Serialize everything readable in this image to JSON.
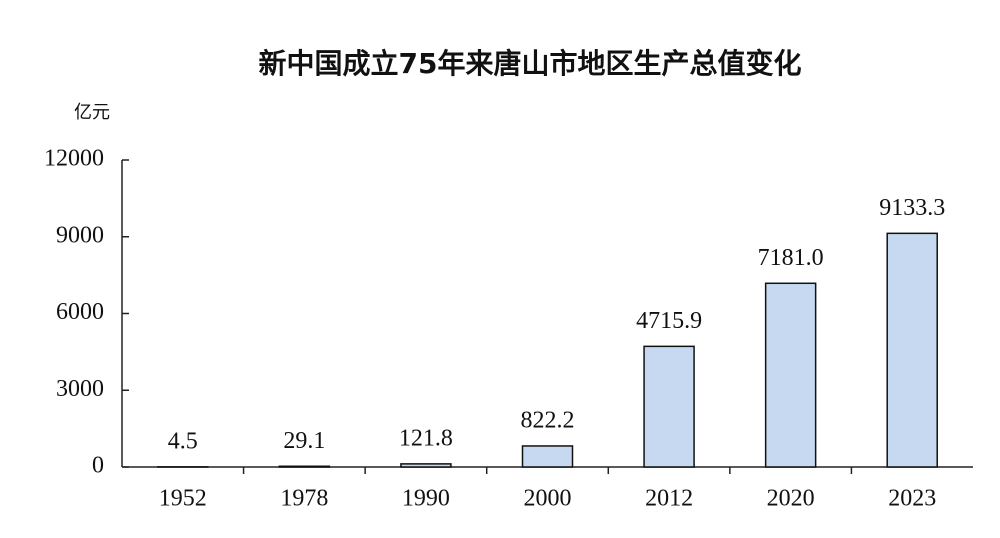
{
  "chart_data": {
    "type": "bar",
    "title": "新中国成立75年来唐山市地区生产总值变化",
    "y_label": "亿元",
    "categories": [
      "1952",
      "1978",
      "1990",
      "2000",
      "2012",
      "2020",
      "2023"
    ],
    "values": [
      4.5,
      29.1,
      121.8,
      822.2,
      4715.9,
      7181.0,
      9133.3
    ],
    "value_labels": [
      "4.5",
      "29.1",
      "121.8",
      "822.2",
      "4715.9",
      "7181.0",
      "9133.3"
    ],
    "color": "#c6d9f0",
    "ylim": [
      0,
      12000
    ],
    "yticks": [
      0,
      3000,
      6000,
      9000,
      12000
    ],
    "grid": false
  }
}
